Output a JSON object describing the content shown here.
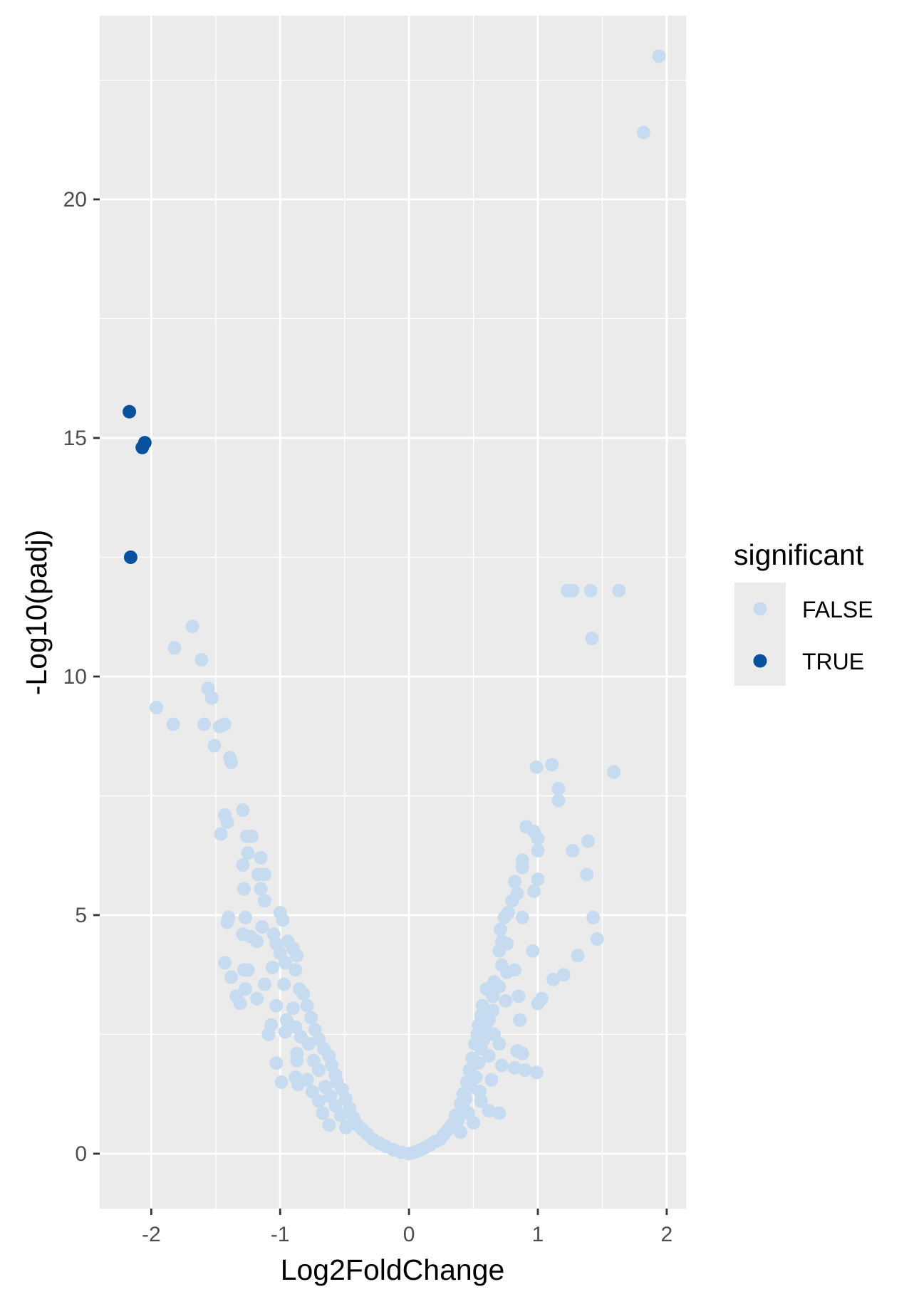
{
  "chart_data": {
    "type": "scatter",
    "title": "",
    "xlabel": "Log2FoldChange",
    "ylabel": "-Log10(padj)",
    "xlim": [
      -2.4,
      2.15
    ],
    "ylim": [
      -1.15,
      23.85
    ],
    "x_ticks": [
      -2,
      -1,
      0,
      1,
      2
    ],
    "x_tick_labels": [
      "-2",
      "-1",
      "0",
      "1",
      "2"
    ],
    "y_ticks": [
      0,
      5,
      10,
      15,
      20
    ],
    "y_tick_labels": [
      "0",
      "5",
      "10",
      "15",
      "20"
    ],
    "grid": true,
    "legend": {
      "title": "significant",
      "position": "right",
      "entries": [
        {
          "label": "FALSE",
          "color": "#c6dbef"
        },
        {
          "label": "TRUE",
          "color": "#08519c"
        }
      ]
    },
    "series": [
      {
        "name": "FALSE",
        "color": "#c6dbef",
        "points": [
          [
            1.94,
            23.0
          ],
          [
            1.82,
            21.4
          ],
          [
            1.23,
            11.8
          ],
          [
            1.27,
            11.8
          ],
          [
            1.41,
            11.8
          ],
          [
            1.63,
            11.8
          ],
          [
            1.42,
            10.8
          ],
          [
            1.59,
            8.0
          ],
          [
            0.99,
            8.1
          ],
          [
            1.11,
            8.15
          ],
          [
            1.16,
            7.65
          ],
          [
            1.16,
            7.4
          ],
          [
            0.91,
            6.85
          ],
          [
            0.97,
            6.75
          ],
          [
            1.0,
            6.6
          ],
          [
            1.39,
            6.55
          ],
          [
            1.27,
            6.35
          ],
          [
            1.0,
            6.35
          ],
          [
            0.88,
            6.15
          ],
          [
            0.88,
            6.0
          ],
          [
            1.38,
            5.85
          ],
          [
            1.0,
            5.75
          ],
          [
            0.82,
            5.7
          ],
          [
            0.97,
            5.5
          ],
          [
            0.84,
            5.45
          ],
          [
            0.8,
            5.3
          ],
          [
            0.77,
            5.05
          ],
          [
            0.74,
            4.95
          ],
          [
            0.88,
            4.95
          ],
          [
            1.43,
            4.95
          ],
          [
            0.71,
            4.7
          ],
          [
            0.76,
            4.4
          ],
          [
            0.72,
            4.45
          ],
          [
            0.7,
            4.25
          ],
          [
            1.46,
            4.5
          ],
          [
            0.96,
            4.25
          ],
          [
            0.72,
            3.95
          ],
          [
            0.82,
            3.85
          ],
          [
            0.76,
            3.8
          ],
          [
            1.31,
            4.15
          ],
          [
            1.2,
            3.75
          ],
          [
            1.12,
            3.65
          ],
          [
            0.66,
            3.6
          ],
          [
            0.7,
            3.5
          ],
          [
            0.6,
            3.45
          ],
          [
            0.65,
            3.3
          ],
          [
            0.85,
            3.3
          ],
          [
            1.03,
            3.25
          ],
          [
            1.0,
            3.15
          ],
          [
            0.75,
            3.2
          ],
          [
            0.57,
            3.1
          ],
          [
            0.65,
            3.0
          ],
          [
            0.56,
            2.9
          ],
          [
            0.62,
            2.8
          ],
          [
            0.86,
            2.8
          ],
          [
            0.54,
            2.7
          ],
          [
            0.6,
            2.6
          ],
          [
            0.66,
            2.5
          ],
          [
            0.53,
            2.5
          ],
          [
            0.58,
            2.4
          ],
          [
            0.7,
            2.3
          ],
          [
            0.51,
            2.3
          ],
          [
            0.56,
            2.2
          ],
          [
            0.84,
            2.15
          ],
          [
            0.88,
            2.1
          ],
          [
            0.62,
            2.05
          ],
          [
            0.49,
            2.0
          ],
          [
            0.54,
            1.9
          ],
          [
            0.72,
            1.85
          ],
          [
            0.82,
            1.8
          ],
          [
            0.9,
            1.75
          ],
          [
            0.99,
            1.7
          ],
          [
            0.47,
            1.75
          ],
          [
            0.52,
            1.6
          ],
          [
            0.64,
            1.55
          ],
          [
            0.45,
            1.5
          ],
          [
            0.48,
            1.4
          ],
          [
            0.55,
            1.3
          ],
          [
            0.42,
            1.25
          ],
          [
            0.44,
            1.15
          ],
          [
            0.56,
            1.1
          ],
          [
            0.4,
            1.05
          ],
          [
            0.42,
            0.95
          ],
          [
            0.46,
            0.85
          ],
          [
            0.62,
            0.9
          ],
          [
            0.7,
            0.85
          ],
          [
            0.36,
            0.8
          ],
          [
            0.38,
            0.7
          ],
          [
            0.5,
            0.65
          ],
          [
            0.33,
            0.6
          ],
          [
            0.3,
            0.5
          ],
          [
            0.4,
            0.45
          ],
          [
            0.27,
            0.4
          ],
          [
            0.24,
            0.3
          ],
          [
            0.2,
            0.25
          ],
          [
            0.16,
            0.18
          ],
          [
            0.12,
            0.12
          ],
          [
            0.08,
            0.07
          ],
          [
            0.04,
            0.03
          ],
          [
            0.0,
            0.0
          ],
          [
            -1.68,
            11.05
          ],
          [
            -1.82,
            10.6
          ],
          [
            -1.61,
            10.35
          ],
          [
            -1.56,
            9.75
          ],
          [
            -1.53,
            9.55
          ],
          [
            -1.96,
            9.35
          ],
          [
            -1.83,
            9.0
          ],
          [
            -1.59,
            9.0
          ],
          [
            -1.47,
            8.95
          ],
          [
            -1.43,
            9.0
          ],
          [
            -1.51,
            8.55
          ],
          [
            -1.39,
            8.3
          ],
          [
            -1.38,
            8.2
          ],
          [
            -1.29,
            7.2
          ],
          [
            -1.43,
            7.1
          ],
          [
            -1.41,
            6.95
          ],
          [
            -1.46,
            6.7
          ],
          [
            -1.26,
            6.65
          ],
          [
            -1.22,
            6.65
          ],
          [
            -1.25,
            6.3
          ],
          [
            -1.15,
            6.2
          ],
          [
            -1.29,
            6.05
          ],
          [
            -1.17,
            5.85
          ],
          [
            -1.12,
            5.85
          ],
          [
            -1.28,
            5.55
          ],
          [
            -1.15,
            5.55
          ],
          [
            -1.12,
            5.3
          ],
          [
            -1.0,
            5.05
          ],
          [
            -0.98,
            4.9
          ],
          [
            -1.4,
            4.95
          ],
          [
            -1.41,
            4.85
          ],
          [
            -1.27,
            4.95
          ],
          [
            -1.14,
            4.75
          ],
          [
            -1.05,
            4.6
          ],
          [
            -1.29,
            4.6
          ],
          [
            -1.23,
            4.55
          ],
          [
            -1.18,
            4.45
          ],
          [
            -1.03,
            4.4
          ],
          [
            -0.94,
            4.45
          ],
          [
            -0.9,
            4.3
          ],
          [
            -1.0,
            4.2
          ],
          [
            -0.87,
            4.15
          ],
          [
            -0.96,
            4.0
          ],
          [
            -1.06,
            3.9
          ],
          [
            -1.43,
            4.0
          ],
          [
            -1.28,
            3.85
          ],
          [
            -1.25,
            3.85
          ],
          [
            -0.88,
            3.85
          ],
          [
            -1.38,
            3.7
          ],
          [
            -1.27,
            3.45
          ],
          [
            -1.12,
            3.55
          ],
          [
            -0.97,
            3.55
          ],
          [
            -0.85,
            3.45
          ],
          [
            -0.82,
            3.35
          ],
          [
            -1.34,
            3.3
          ],
          [
            -1.31,
            3.15
          ],
          [
            -1.18,
            3.25
          ],
          [
            -1.03,
            3.1
          ],
          [
            -0.9,
            3.05
          ],
          [
            -0.79,
            3.1
          ],
          [
            -0.76,
            2.85
          ],
          [
            -0.95,
            2.8
          ],
          [
            -1.07,
            2.7
          ],
          [
            -0.88,
            2.65
          ],
          [
            -0.73,
            2.6
          ],
          [
            -1.09,
            2.5
          ],
          [
            -0.96,
            2.55
          ],
          [
            -0.84,
            2.45
          ],
          [
            -0.7,
            2.4
          ],
          [
            -0.78,
            2.3
          ],
          [
            -0.66,
            2.2
          ],
          [
            -0.87,
            2.1
          ],
          [
            -0.62,
            2.05
          ],
          [
            -0.74,
            1.95
          ],
          [
            -0.87,
            1.95
          ],
          [
            -1.03,
            1.9
          ],
          [
            -0.6,
            1.85
          ],
          [
            -0.7,
            1.75
          ],
          [
            -0.57,
            1.65
          ],
          [
            -0.88,
            1.6
          ],
          [
            -0.79,
            1.55
          ],
          [
            -0.99,
            1.5
          ],
          [
            -0.56,
            1.5
          ],
          [
            -0.86,
            1.45
          ],
          [
            -0.65,
            1.4
          ],
          [
            -0.52,
            1.35
          ],
          [
            -0.75,
            1.3
          ],
          [
            -0.61,
            1.2
          ],
          [
            -0.49,
            1.15
          ],
          [
            -0.7,
            1.1
          ],
          [
            -0.57,
            1.0
          ],
          [
            -0.46,
            0.95
          ],
          [
            -0.67,
            0.85
          ],
          [
            -0.53,
            0.8
          ],
          [
            -0.43,
            0.75
          ],
          [
            -0.62,
            0.6
          ],
          [
            -0.4,
            0.6
          ],
          [
            -0.49,
            0.55
          ],
          [
            -0.36,
            0.5
          ],
          [
            -0.32,
            0.4
          ],
          [
            -0.28,
            0.3
          ],
          [
            -0.23,
            0.22
          ],
          [
            -0.18,
            0.15
          ],
          [
            -0.12,
            0.08
          ],
          [
            -0.06,
            0.03
          ]
        ]
      },
      {
        "name": "TRUE",
        "color": "#08519c",
        "points": [
          [
            -2.17,
            15.55
          ],
          [
            -2.05,
            14.9
          ],
          [
            -2.07,
            14.8
          ],
          [
            -2.16,
            12.5
          ]
        ]
      }
    ]
  }
}
